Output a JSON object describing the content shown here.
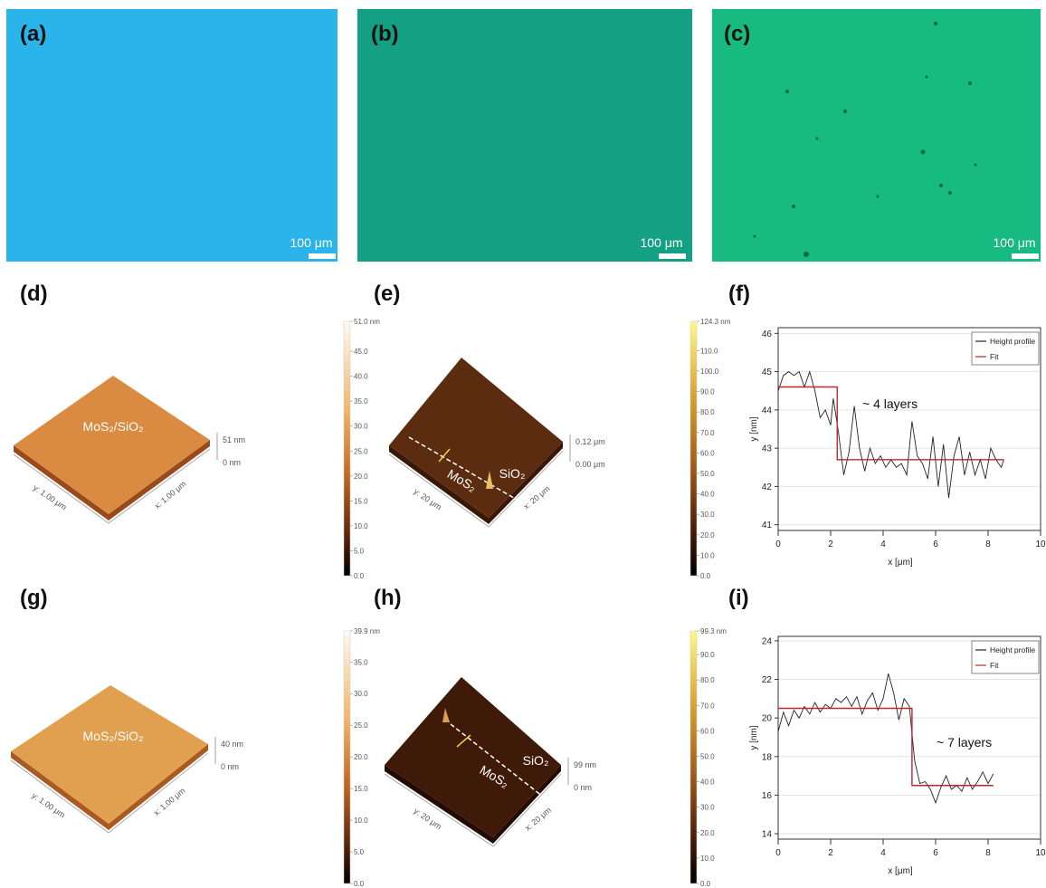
{
  "panels": {
    "a": {
      "label": "(a)",
      "scale_bar": "100 μm"
    },
    "b": {
      "label": "(b)",
      "scale_bar": "100 μm"
    },
    "c": {
      "label": "(c)",
      "scale_bar": "100 μm"
    },
    "d": {
      "label": "(d)",
      "sample": "MoS₂/SiO₂",
      "z_max": "51 nm",
      "z_min": "0 nm",
      "y_axis": "y: 1.00 μm",
      "x_axis": "x: 1.00 μm"
    },
    "e": {
      "label": "(e)",
      "region_1": "MoS₂",
      "region_2": "SiO₂",
      "z_max": "0.12 μm",
      "z_min": "0.00 μm",
      "y_axis": "y: 20 μm",
      "x_axis": "x: 20 μm"
    },
    "f": {
      "label": "(f)"
    },
    "g": {
      "label": "(g)",
      "sample": "MoS₂/SiO₂",
      "z_max": "40 nm",
      "z_min": "0 nm",
      "y_axis": "y: 1.00 μm",
      "x_axis": "x: 1.00 μm"
    },
    "h": {
      "label": "(h)",
      "region_1": "MoS₂",
      "region_2": "SiO₂",
      "z_max": "99 nm",
      "z_min": "0 nm",
      "y_axis": "y: 20 μm",
      "x_axis": "x: 20 μm"
    },
    "i": {
      "label": "(i)"
    }
  },
  "colorbars": [
    {
      "lim": [
        0,
        51.0
      ],
      "ticks": [
        {
          "value": 51.0,
          "label": "51.0 nm"
        },
        {
          "value": 45,
          "label": "45.0"
        },
        {
          "value": 40,
          "label": "40.0"
        },
        {
          "value": 35,
          "label": "35.0"
        },
        {
          "value": 30,
          "label": "30.0"
        },
        {
          "value": 25,
          "label": "25.0"
        },
        {
          "value": 20,
          "label": "20.0"
        },
        {
          "value": 15,
          "label": "15.0"
        },
        {
          "value": 10,
          "label": "10.0"
        },
        {
          "value": 5,
          "label": "5.0"
        },
        {
          "value": 0,
          "label": "0.0"
        }
      ]
    },
    {
      "lim": [
        0,
        124.3
      ],
      "ticks": [
        {
          "value": 124.3,
          "label": "124.3 nm"
        },
        {
          "value": 110,
          "label": "110.0"
        },
        {
          "value": 100,
          "label": "100.0"
        },
        {
          "value": 90,
          "label": "90.0"
        },
        {
          "value": 80,
          "label": "80.0"
        },
        {
          "value": 70,
          "label": "70.0"
        },
        {
          "value": 60,
          "label": "60.0"
        },
        {
          "value": 50,
          "label": "50.0"
        },
        {
          "value": 40,
          "label": "40.0"
        },
        {
          "value": 30,
          "label": "30.0"
        },
        {
          "value": 20,
          "label": "20.0"
        },
        {
          "value": 10,
          "label": "10.0"
        },
        {
          "value": 0,
          "label": "0.0"
        }
      ]
    },
    {
      "lim": [
        0,
        39.9
      ],
      "ticks": [
        {
          "value": 39.9,
          "label": "39.9 nm"
        },
        {
          "value": 35,
          "label": "35.0"
        },
        {
          "value": 30,
          "label": "30.0"
        },
        {
          "value": 25,
          "label": "25.0"
        },
        {
          "value": 20,
          "label": "20.0"
        },
        {
          "value": 15,
          "label": "15.0"
        },
        {
          "value": 10,
          "label": "10.0"
        },
        {
          "value": 5,
          "label": "5.0"
        },
        {
          "value": 0,
          "label": "0.0"
        }
      ]
    },
    {
      "lim": [
        0,
        99.3
      ],
      "ticks": [
        {
          "value": 99.3,
          "label": "99.3 nm"
        },
        {
          "value": 90,
          "label": "90.0"
        },
        {
          "value": 80,
          "label": "80.0"
        },
        {
          "value": 70,
          "label": "70.0"
        },
        {
          "value": 60,
          "label": "60.0"
        },
        {
          "value": 50,
          "label": "50.0"
        },
        {
          "value": 40,
          "label": "40.0"
        },
        {
          "value": 30,
          "label": "30.0"
        },
        {
          "value": 20,
          "label": "20.0"
        },
        {
          "value": 10,
          "label": "10.0"
        },
        {
          "value": 0,
          "label": "0.0"
        }
      ]
    }
  ],
  "chart_data": [
    {
      "type": "line",
      "x_label": "x [μm]",
      "y_label": "y [nm]",
      "annotation": "~ 4 layers",
      "xlim": [
        0,
        10
      ],
      "xticks": [
        0,
        2,
        4,
        6,
        8,
        10
      ],
      "ylim": [
        40.85,
        46.15
      ],
      "yticks": [
        41,
        42,
        43,
        44,
        45,
        46
      ],
      "grid": true,
      "legend": "upper right",
      "series": [
        {
          "name": "Height profile",
          "color": "#222222",
          "x": [
            0,
            0.2,
            0.4,
            0.6,
            0.8,
            1.0,
            1.2,
            1.4,
            1.6,
            1.8,
            2.0,
            2.1,
            2.3,
            2.5,
            2.7,
            2.9,
            3.1,
            3.3,
            3.5,
            3.7,
            3.9,
            4.1,
            4.3,
            4.5,
            4.7,
            4.9,
            5.1,
            5.3,
            5.5,
            5.7,
            5.9,
            6.1,
            6.3,
            6.5,
            6.7,
            6.9,
            7.1,
            7.3,
            7.5,
            7.7,
            7.9,
            8.1,
            8.3,
            8.5,
            8.6
          ],
          "values": [
            44.5,
            44.9,
            45.0,
            44.9,
            45.0,
            44.6,
            45.0,
            44.5,
            43.8,
            44.0,
            43.6,
            44.3,
            43.4,
            42.3,
            42.9,
            44.1,
            43.0,
            42.4,
            43.0,
            42.6,
            42.8,
            42.5,
            42.7,
            42.5,
            42.6,
            42.3,
            43.7,
            42.8,
            42.6,
            42.2,
            43.3,
            42.0,
            43.1,
            41.7,
            42.8,
            43.3,
            42.3,
            42.9,
            42.3,
            42.7,
            42.2,
            43.0,
            42.7,
            42.5,
            42.7
          ]
        },
        {
          "name": "Fit",
          "color": "#c0272d",
          "x": [
            0,
            2.25,
            2.25,
            8.6
          ],
          "values": [
            44.6,
            44.6,
            42.7,
            42.7
          ]
        }
      ]
    },
    {
      "type": "line",
      "x_label": "x [μm]",
      "y_label": "y [nm]",
      "annotation": "~ 7 layers",
      "xlim": [
        0,
        10
      ],
      "xticks": [
        0,
        2,
        4,
        6,
        8,
        10
      ],
      "ylim": [
        13.72,
        24.23
      ],
      "yticks": [
        14,
        16,
        18,
        20,
        22,
        24
      ],
      "grid": true,
      "legend": "upper right",
      "series": [
        {
          "name": "Height profile",
          "color": "#222222",
          "x": [
            0,
            0.2,
            0.4,
            0.6,
            0.8,
            1.0,
            1.2,
            1.4,
            1.6,
            1.8,
            2.0,
            2.2,
            2.4,
            2.6,
            2.8,
            3.0,
            3.2,
            3.4,
            3.6,
            3.8,
            4.0,
            4.2,
            4.4,
            4.6,
            4.8,
            5.0,
            5.2,
            5.4,
            5.6,
            5.8,
            6.0,
            6.2,
            6.4,
            6.6,
            6.8,
            7.0,
            7.2,
            7.4,
            7.6,
            7.8,
            8.0,
            8.2
          ],
          "values": [
            19.3,
            20.3,
            19.6,
            20.4,
            20.0,
            20.6,
            20.2,
            20.8,
            20.3,
            20.7,
            20.5,
            21.0,
            20.8,
            21.1,
            20.6,
            21.1,
            20.2,
            20.9,
            21.3,
            20.4,
            21.0,
            22.3,
            21.3,
            19.9,
            21.0,
            20.6,
            17.8,
            16.6,
            16.7,
            16.3,
            15.6,
            16.4,
            17.0,
            16.3,
            16.5,
            16.2,
            16.9,
            16.3,
            16.7,
            17.2,
            16.6,
            17.1
          ]
        },
        {
          "name": "Fit",
          "color": "#c0272d",
          "x": [
            0,
            5.1,
            5.1,
            8.2
          ],
          "values": [
            20.5,
            20.5,
            16.5,
            16.5
          ]
        }
      ]
    }
  ]
}
